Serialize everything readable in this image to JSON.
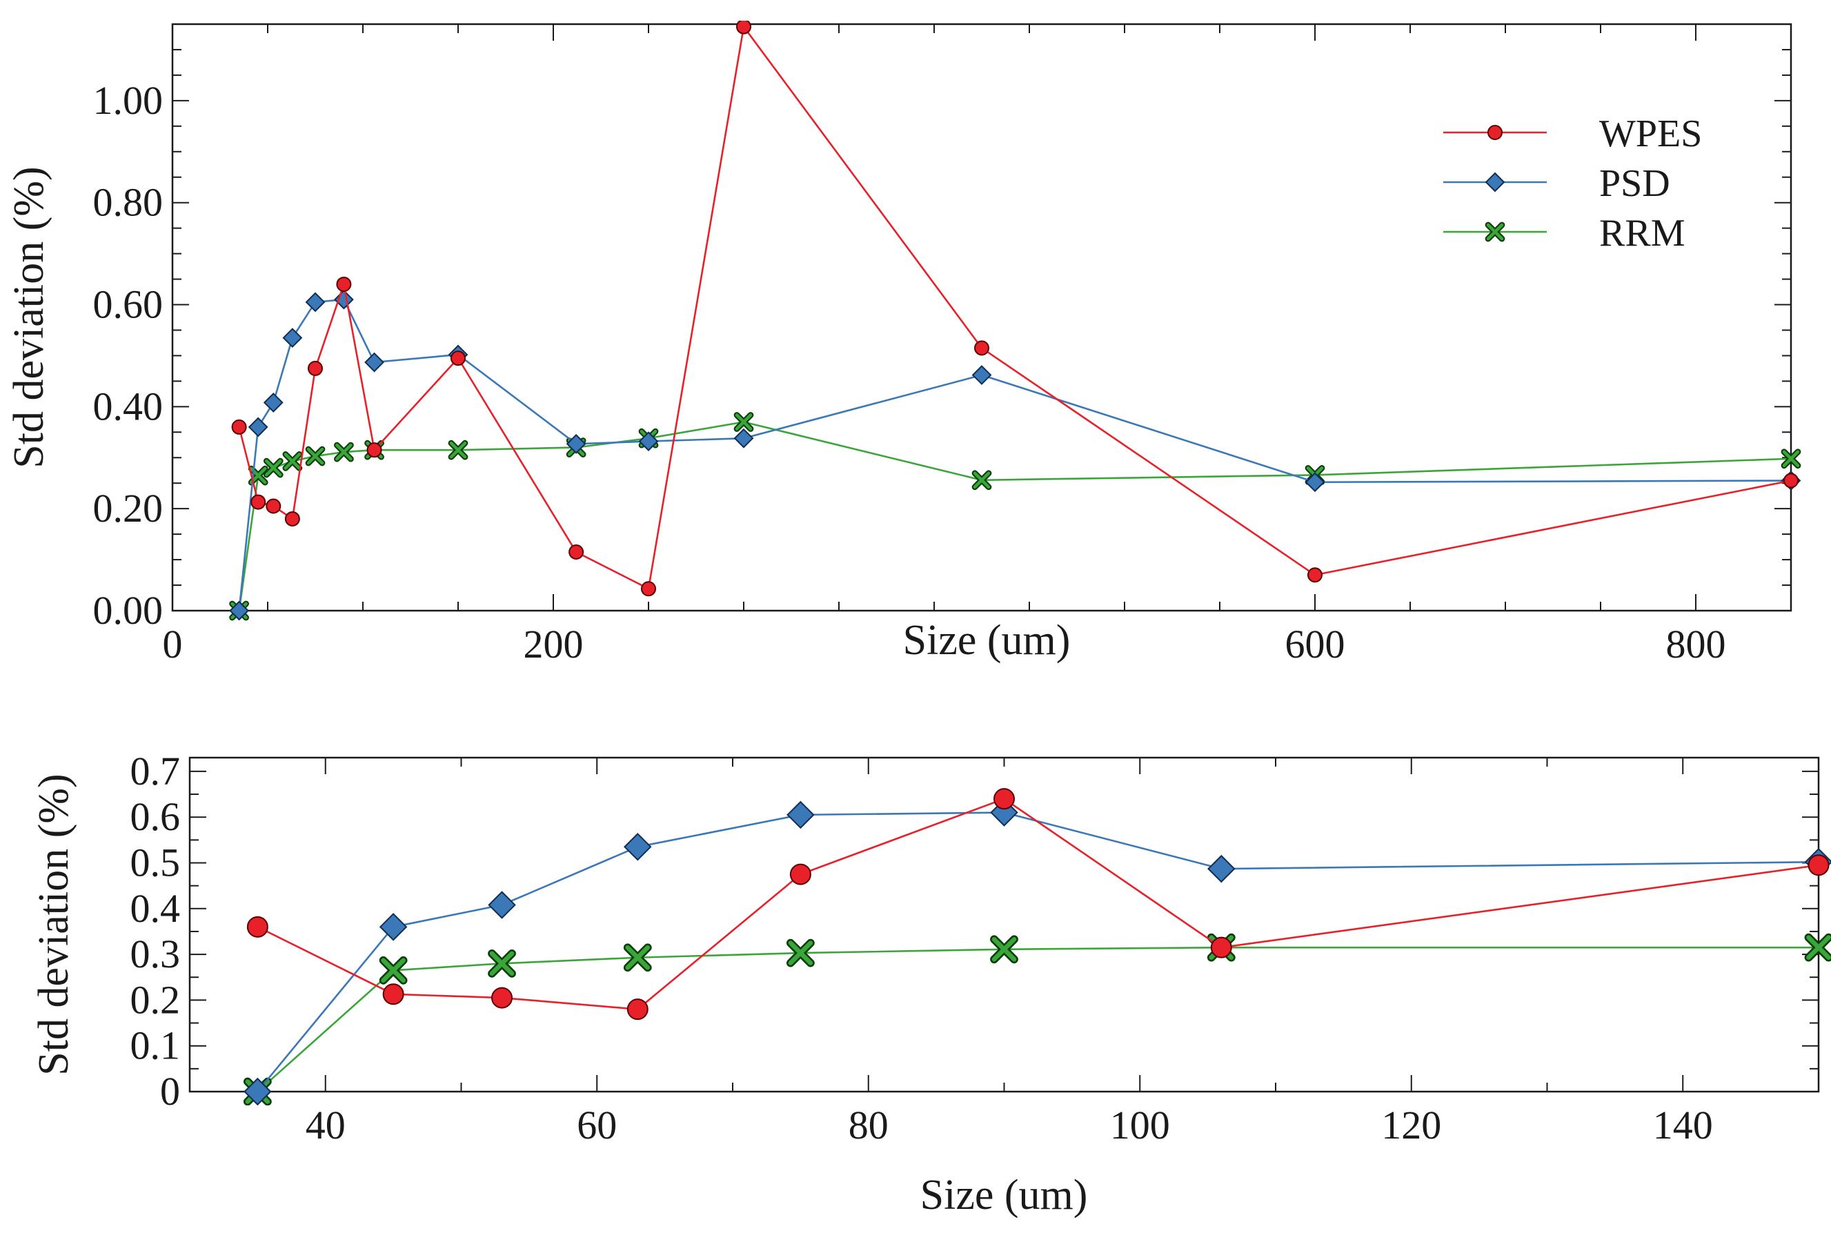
{
  "colors": {
    "WPES": "#e8202a",
    "PSD": "#3a78b8",
    "RRM": "#3aa63a",
    "axis": "#1a1a1a"
  },
  "chart_data": [
    {
      "type": "line",
      "xlabel": "Size (um)",
      "ylabel": "Std deviation (%)",
      "xlim": [
        0,
        850
      ],
      "ylim": [
        0,
        1.15
      ],
      "xticks": [
        0,
        200,
        600,
        800
      ],
      "xtick_labels": [
        "0",
        "200",
        "600",
        "800"
      ],
      "yticks": [
        0,
        0.2,
        0.4,
        0.6,
        0.8,
        1.0
      ],
      "ytick_labels": [
        "0.00",
        "0.20",
        "0.40",
        "0.60",
        "0.80",
        "1.00"
      ],
      "grid": false,
      "legend": "top-right",
      "series": [
        {
          "name": "WPES",
          "marker": "circle",
          "x": [
            35,
            45,
            53,
            63,
            75,
            90,
            106,
            150,
            212,
            250,
            300,
            425,
            600,
            850
          ],
          "y": [
            0.36,
            0.213,
            0.205,
            0.18,
            0.475,
            0.64,
            0.315,
            0.495,
            0.115,
            0.043,
            1.145,
            0.515,
            0.07,
            0.255
          ]
        },
        {
          "name": "PSD",
          "marker": "diamond",
          "x": [
            35,
            45,
            53,
            63,
            75,
            90,
            106,
            150,
            212,
            250,
            300,
            425,
            600,
            850
          ],
          "y": [
            0.0,
            0.36,
            0.408,
            0.535,
            0.605,
            0.61,
            0.487,
            0.502,
            0.327,
            0.332,
            0.338,
            0.462,
            0.252,
            0.255
          ]
        },
        {
          "name": "RRM",
          "marker": "cross",
          "x": [
            35,
            45,
            53,
            63,
            75,
            90,
            106,
            150,
            212,
            250,
            300,
            425,
            600,
            850
          ],
          "y": [
            0.0,
            0.265,
            0.28,
            0.293,
            0.303,
            0.311,
            0.315,
            0.315,
            0.32,
            0.338,
            0.37,
            0.256,
            0.266,
            0.298
          ]
        }
      ]
    },
    {
      "type": "line",
      "xlabel": "Size (um)",
      "ylabel": "Std deviation (%)",
      "xlim": [
        30,
        150
      ],
      "ylim": [
        0,
        0.73
      ],
      "xticks": [
        40,
        60,
        80,
        100,
        120,
        140
      ],
      "xtick_labels": [
        "40",
        "60",
        "80",
        "100",
        "120",
        "140"
      ],
      "yticks": [
        0,
        0.1,
        0.2,
        0.3,
        0.4,
        0.5,
        0.6,
        0.7
      ],
      "ytick_labels": [
        "0",
        "0.1",
        "0.2",
        "0.3",
        "0.4",
        "0.5",
        "0.6",
        "0.7"
      ],
      "grid": false,
      "series": [
        {
          "name": "WPES",
          "marker": "circle",
          "x": [
            35,
            45,
            53,
            63,
            75,
            90,
            106,
            150
          ],
          "y": [
            0.36,
            0.213,
            0.205,
            0.18,
            0.475,
            0.64,
            0.315,
            0.495
          ]
        },
        {
          "name": "PSD",
          "marker": "diamond",
          "x": [
            35,
            45,
            53,
            63,
            75,
            90,
            106,
            150
          ],
          "y": [
            0.0,
            0.36,
            0.408,
            0.535,
            0.605,
            0.61,
            0.487,
            0.502
          ]
        },
        {
          "name": "RRM",
          "marker": "cross",
          "x": [
            35,
            45,
            53,
            63,
            75,
            90,
            106,
            150
          ],
          "y": [
            0.0,
            0.265,
            0.28,
            0.293,
            0.303,
            0.311,
            0.315,
            0.315
          ]
        }
      ]
    }
  ]
}
